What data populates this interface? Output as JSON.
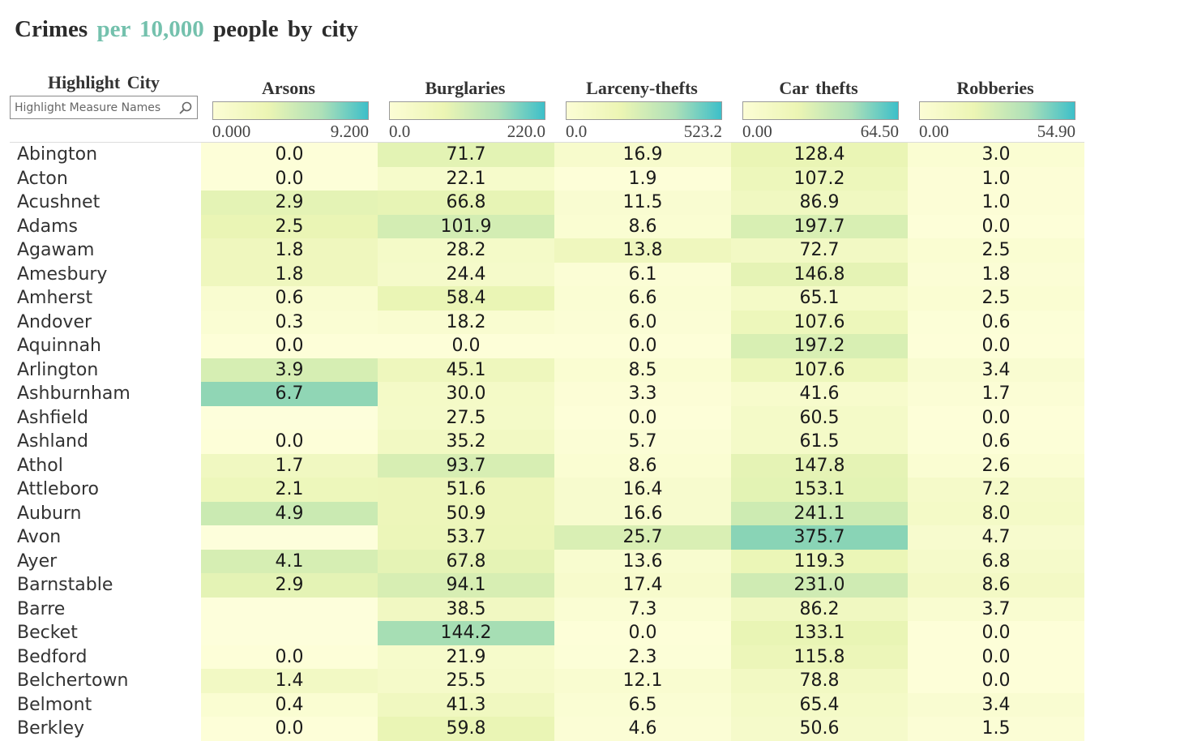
{
  "title": {
    "part1": "Crimes",
    "accent": "per 10,000",
    "part2": "people by city"
  },
  "highlight": {
    "label": "Highlight City",
    "placeholder": "Highlight Measure Names"
  },
  "colors": {
    "low": "#fcfdd5",
    "mid1": "#ecf5b4",
    "mid2": "#aee0b8",
    "high": "#3dbfc9",
    "accent_text": "#74c1ad",
    "empty_cell": "#fdfedb"
  },
  "chart_data": {
    "type": "table",
    "title": "Crimes per 10,000 people by city",
    "row_header": "Highlight City",
    "columns": [
      {
        "name": "Arsons",
        "legend_min": "0.000",
        "legend_max": "9.200"
      },
      {
        "name": "Burglaries",
        "legend_min": "0.0",
        "legend_max": "220.0"
      },
      {
        "name": "Larceny-thefts",
        "legend_min": "0.0",
        "legend_max": "523.2"
      },
      {
        "name": "Car thefts",
        "legend_min": "0.00",
        "legend_max": "64.50"
      },
      {
        "name": "Robberies",
        "legend_min": "0.00",
        "legend_max": "54.90"
      }
    ],
    "rows": [
      {
        "city": "Abington",
        "values": [
          "0.0",
          "71.7",
          "16.9",
          "128.4",
          "3.0"
        ],
        "shade": [
          0.0,
          0.36,
          0.1,
          0.3,
          0.05
        ]
      },
      {
        "city": "Acton",
        "values": [
          "0.0",
          "22.1",
          "1.9",
          "107.2",
          "1.0"
        ],
        "shade": [
          0.0,
          0.11,
          0.0,
          0.25,
          0.02
        ]
      },
      {
        "city": "Acushnet",
        "values": [
          "2.9",
          "66.8",
          "11.5",
          "86.9",
          "1.0"
        ],
        "shade": [
          0.35,
          0.33,
          0.06,
          0.2,
          0.02
        ]
      },
      {
        "city": "Adams",
        "values": [
          "2.5",
          "101.9",
          "8.6",
          "197.7",
          "0.0"
        ],
        "shade": [
          0.3,
          0.5,
          0.05,
          0.46,
          0.0
        ]
      },
      {
        "city": "Agawam",
        "values": [
          "1.8",
          "28.2",
          "13.8",
          "72.7",
          "2.5"
        ],
        "shade": [
          0.22,
          0.14,
          0.22,
          0.17,
          0.05
        ]
      },
      {
        "city": "Amesbury",
        "values": [
          "1.8",
          "24.4",
          "6.1",
          "146.8",
          "1.8"
        ],
        "shade": [
          0.22,
          0.12,
          0.03,
          0.34,
          0.03
        ]
      },
      {
        "city": "Amherst",
        "values": [
          "0.6",
          "58.4",
          "6.6",
          "65.1",
          "2.5"
        ],
        "shade": [
          0.07,
          0.3,
          0.04,
          0.15,
          0.05
        ]
      },
      {
        "city": "Andover",
        "values": [
          "0.3",
          "18.2",
          "6.0",
          "107.6",
          "0.6"
        ],
        "shade": [
          0.04,
          0.07,
          0.03,
          0.25,
          0.01
        ]
      },
      {
        "city": "Aquinnah",
        "values": [
          "0.0",
          "0.0",
          "0.0",
          "197.2",
          "0.0"
        ],
        "shade": [
          0.0,
          0.0,
          0.0,
          0.46,
          0.0
        ]
      },
      {
        "city": "Arlington",
        "values": [
          "3.9",
          "45.1",
          "8.5",
          "107.6",
          "3.4"
        ],
        "shade": [
          0.48,
          0.23,
          0.05,
          0.25,
          0.06
        ]
      },
      {
        "city": "Ashburnham",
        "values": [
          "6.7",
          "30.0",
          "3.3",
          "41.6",
          "1.7"
        ],
        "shade": [
          0.85,
          0.15,
          0.02,
          0.1,
          0.03
        ]
      },
      {
        "city": "Ashfield",
        "values": [
          "",
          "27.5",
          "0.0",
          "60.5",
          "0.0"
        ],
        "shade": [
          -1,
          0.14,
          0.0,
          0.14,
          0.0
        ]
      },
      {
        "city": "Ashland",
        "values": [
          "0.0",
          "35.2",
          "5.7",
          "61.5",
          "0.6"
        ],
        "shade": [
          0.0,
          0.18,
          0.03,
          0.14,
          0.01
        ]
      },
      {
        "city": "Athol",
        "values": [
          "1.7",
          "93.7",
          "8.6",
          "147.8",
          "2.6"
        ],
        "shade": [
          0.2,
          0.47,
          0.05,
          0.34,
          0.05
        ]
      },
      {
        "city": "Attleboro",
        "values": [
          "2.1",
          "51.6",
          "16.4",
          "153.1",
          "7.2"
        ],
        "shade": [
          0.25,
          0.26,
          0.09,
          0.36,
          0.13
        ]
      },
      {
        "city": "Auburn",
        "values": [
          "4.9",
          "50.9",
          "16.6",
          "241.1",
          "8.0"
        ],
        "shade": [
          0.58,
          0.26,
          0.09,
          0.56,
          0.15
        ]
      },
      {
        "city": "Avon",
        "values": [
          "",
          "53.7",
          "25.7",
          "375.7",
          "4.7"
        ],
        "shade": [
          -1,
          0.27,
          0.45,
          0.88,
          0.09
        ]
      },
      {
        "city": "Ayer",
        "values": [
          "4.1",
          "67.8",
          "13.6",
          "119.3",
          "6.8"
        ],
        "shade": [
          0.48,
          0.34,
          0.08,
          0.28,
          0.12
        ]
      },
      {
        "city": "Barnstable",
        "values": [
          "2.9",
          "94.1",
          "17.4",
          "231.0",
          "8.6"
        ],
        "shade": [
          0.35,
          0.47,
          0.1,
          0.54,
          0.16
        ]
      },
      {
        "city": "Barre",
        "values": [
          "",
          "38.5",
          "7.3",
          "86.2",
          "3.7"
        ],
        "shade": [
          -1,
          0.19,
          0.04,
          0.2,
          0.07
        ]
      },
      {
        "city": "Becket",
        "values": [
          "",
          "144.2",
          "0.0",
          "133.1",
          "0.0"
        ],
        "shade": [
          -1,
          0.75,
          0.0,
          0.31,
          0.0
        ]
      },
      {
        "city": "Bedford",
        "values": [
          "0.0",
          "21.9",
          "2.3",
          "115.8",
          "0.0"
        ],
        "shade": [
          0.0,
          0.11,
          0.01,
          0.27,
          0.0
        ]
      },
      {
        "city": "Belchertown",
        "values": [
          "1.4",
          "25.5",
          "12.1",
          "78.8",
          "0.0"
        ],
        "shade": [
          0.17,
          0.13,
          0.07,
          0.18,
          0.0
        ]
      },
      {
        "city": "Belmont",
        "values": [
          "0.4",
          "41.3",
          "6.5",
          "65.4",
          "3.4"
        ],
        "shade": [
          0.05,
          0.21,
          0.04,
          0.15,
          0.06
        ]
      },
      {
        "city": "Berkley",
        "values": [
          "0.0",
          "59.8",
          "4.6",
          "50.6",
          "1.5"
        ],
        "shade": [
          0.0,
          0.3,
          0.03,
          0.12,
          0.03
        ]
      }
    ]
  }
}
